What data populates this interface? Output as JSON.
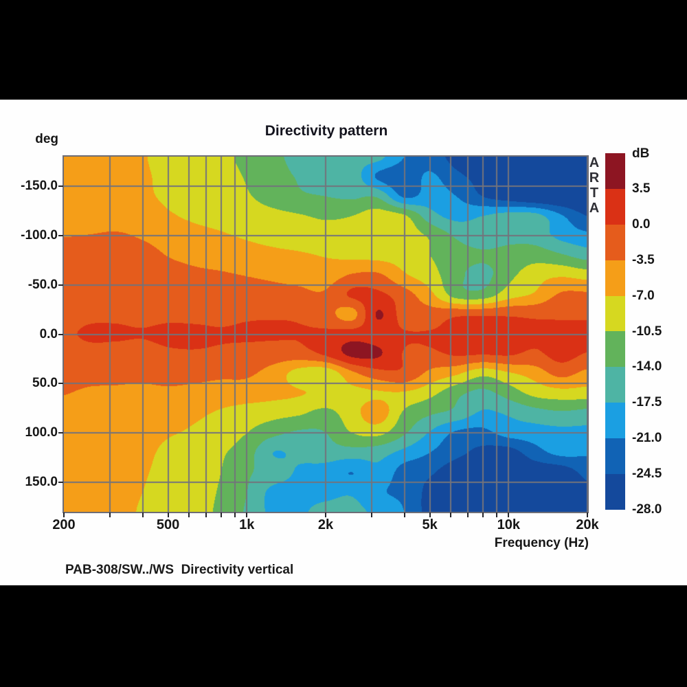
{
  "window": {
    "bar_color": "#000000",
    "content_color": "#fefefe"
  },
  "header": {
    "title": "Directivity pattern",
    "y_unit_label": "deg",
    "watermark": "ARTA"
  },
  "x_axis": {
    "label": "Frequency (Hz)",
    "tick_labels": [
      "200",
      "500",
      "1k",
      "2k",
      "5k",
      "10k",
      "20k"
    ],
    "tick_freqs": [
      200,
      500,
      1000,
      2000,
      5000,
      10000,
      20000
    ],
    "minor_tick_freqs": [
      200,
      300,
      400,
      500,
      600,
      700,
      800,
      900,
      1000,
      2000,
      3000,
      4000,
      5000,
      6000,
      7000,
      8000,
      9000,
      10000,
      20000
    ],
    "fmin": 200,
    "fmax": 20000,
    "scale": "log"
  },
  "y_axis": {
    "tick_labels": [
      "-150.0",
      "-100.0",
      "-50.0",
      "0.0",
      "50.0",
      "100.0",
      "150.0"
    ],
    "tick_angles": [
      -150,
      -100,
      -50,
      0,
      50,
      100,
      150
    ],
    "amin": -180,
    "amax": 180
  },
  "colorbar": {
    "unit": "dB",
    "boundary_labels": [
      "3.5",
      "0.0",
      "-3.5",
      "-7.0",
      "-10.5",
      "-14.0",
      "-17.5",
      "-21.0",
      "-24.5",
      "-28.0"
    ],
    "segment_colors": [
      "#8D1522",
      "#DA3115",
      "#E55C1C",
      "#F59E18",
      "#D6D820",
      "#62B35B",
      "#4EB4A4",
      "#1B9FE2",
      "#1163B5",
      "#14499C"
    ]
  },
  "footer": {
    "caption": "PAB-308/SW../WS  Directivity vertical"
  },
  "chart_data": {
    "type": "heatmap",
    "title": "Directivity pattern",
    "xlabel": "Frequency (Hz)",
    "ylabel": "deg",
    "value_unit": "dB",
    "x_scale": "log",
    "xlim": [
      200,
      20000
    ],
    "ylim": [
      -180,
      180
    ],
    "grid": true,
    "grid_color": "#73737b",
    "border_color": "#6d6d76",
    "legend_position": "right-colorbar",
    "levels_db": [
      3.5,
      0,
      -3.5,
      -7,
      -10.5,
      -14,
      -17.5,
      -21,
      -24.5
    ],
    "level_colors": [
      "#8D1522",
      "#DA3115",
      "#E55C1C",
      "#F59E18",
      "#D6D820",
      "#62B35B",
      "#4EB4A4",
      "#1B9FE2",
      "#1163B5",
      "#14499C"
    ],
    "colorbar_range_db": [
      3.5,
      -28.0
    ],
    "frequencies_hz": [
      200,
      250,
      315,
      400,
      500,
      630,
      800,
      1000,
      1250,
      1600,
      2000,
      2500,
      3150,
      4000,
      5000,
      6300,
      8000,
      10000,
      12500,
      16000,
      20000
    ],
    "angles_deg": [
      -180,
      -160,
      -140,
      -120,
      -100,
      -80,
      -60,
      -40,
      -20,
      0,
      20,
      40,
      60,
      80,
      100,
      120,
      140,
      160,
      180
    ],
    "values_db": [
      [
        -5.2,
        -5.4,
        -6.0,
        -6.8,
        -8.0,
        -8.6,
        -9.6,
        -11.5,
        -13.5,
        -14.5,
        -15.0,
        -16.0,
        -16.5,
        -21.0,
        -22.5,
        -26.0,
        -28.5,
        -29.0,
        -29.0,
        -29.0,
        -29.0
      ],
      [
        -5.2,
        -5.4,
        -6.0,
        -6.6,
        -7.8,
        -8.6,
        -9.4,
        -10.8,
        -13.0,
        -14.2,
        -14.8,
        -15.5,
        -21.5,
        -23.0,
        -20.5,
        -23.5,
        -26.0,
        -27.5,
        -28.5,
        -29.0,
        -29.0
      ],
      [
        -5.2,
        -5.3,
        -5.8,
        -6.4,
        -7.6,
        -8.4,
        -9.2,
        -10.2,
        -12.0,
        -13.5,
        -14.0,
        -14.5,
        -14.5,
        -21.5,
        -19.5,
        -21.0,
        -24.5,
        -26.5,
        -28.0,
        -28.5,
        -28.5
      ],
      [
        -5.3,
        -5.0,
        -4.8,
        -5.3,
        -6.6,
        -7.6,
        -8.2,
        -8.8,
        -9.5,
        -10.2,
        -11.0,
        -10.5,
        -8.8,
        -10.0,
        -16.0,
        -18.5,
        -17.5,
        -16.0,
        -16.2,
        -20.5,
        -24.5
      ],
      [
        -3.6,
        -3.4,
        -3.2,
        -3.8,
        -4.8,
        -5.8,
        -6.6,
        -7.4,
        -8.0,
        -8.4,
        -8.8,
        -8.8,
        -8.2,
        -8.8,
        -11.0,
        -14.5,
        -16.0,
        -15.0,
        -15.5,
        -18.5,
        -20.0
      ],
      [
        -2.6,
        -2.4,
        -2.4,
        -2.6,
        -3.6,
        -4.2,
        -4.8,
        -5.6,
        -6.2,
        -6.6,
        -7.2,
        -7.8,
        -8.0,
        -8.5,
        -10.5,
        -12.5,
        -13.5,
        -12.8,
        -12.0,
        -13.5,
        -15.5
      ],
      [
        -2.0,
        -1.8,
        -1.8,
        -2.0,
        -2.6,
        -3.0,
        -3.2,
        -3.6,
        -4.0,
        -4.4,
        -5.2,
        -3.2,
        -2.9,
        -6.5,
        -9.0,
        -13.0,
        -15.0,
        -11.5,
        -8.5,
        -7.5,
        -8.5
      ],
      [
        -1.6,
        -1.3,
        -1.4,
        -1.5,
        -1.8,
        -2.0,
        -2.2,
        -2.4,
        -2.6,
        -2.8,
        -3.0,
        0.5,
        0.8,
        -2.0,
        -6.0,
        -12.0,
        -12.5,
        -8.5,
        -6.5,
        -3.0,
        -2.8
      ],
      [
        -1.2,
        -0.6,
        -0.6,
        -1.0,
        -0.8,
        -1.0,
        -1.2,
        -0.6,
        -0.4,
        -0.6,
        -2.0,
        -4.8,
        3.8,
        -1.6,
        -1.8,
        -0.6,
        -0.5,
        -0.4,
        -0.6,
        -0.4,
        -0.5
      ],
      [
        -0.4,
        0.4,
        0.4,
        0.2,
        0.8,
        0.8,
        0.4,
        0.6,
        0.4,
        0.2,
        0.6,
        1.8,
        1.5,
        0.3,
        0.2,
        0.6,
        0.8,
        0.8,
        0.4,
        0.6,
        0.8
      ],
      [
        -1.4,
        -1.0,
        -1.2,
        -1.4,
        -0.6,
        -0.4,
        -0.8,
        -1.4,
        -1.6,
        -1.4,
        0.6,
        4.3,
        4.0,
        -0.2,
        -0.6,
        0.4,
        0.2,
        0.4,
        -0.6,
        1.2,
        -0.2
      ],
      [
        -2.2,
        -2.4,
        -2.6,
        -2.6,
        -2.2,
        -2.4,
        -2.8,
        -3.0,
        -5.0,
        -8.5,
        -9.5,
        -4.5,
        -1.4,
        -0.8,
        -4.5,
        -6.5,
        -9.5,
        -7.5,
        -5.5,
        -2.5,
        -4.5
      ],
      [
        -3.4,
        -4.0,
        -4.2,
        -4.4,
        -4.2,
        -4.6,
        -5.2,
        -5.4,
        -6.0,
        -6.8,
        -7.6,
        -8.0,
        -7.4,
        -7.5,
        -9.5,
        -13.0,
        -15.0,
        -12.5,
        -9.5,
        -8.5,
        -8.6
      ],
      [
        -4.4,
        -4.8,
        -6.2,
        -5.6,
        -5.8,
        -6.4,
        -7.4,
        -8.4,
        -9.2,
        -10.0,
        -11.5,
        -8.5,
        -5.0,
        -11.0,
        -13.5,
        -15.0,
        -18.0,
        -17.0,
        -15.5,
        -14.5,
        -15.2
      ],
      [
        -5.2,
        -5.6,
        -6.4,
        -6.4,
        -6.8,
        -7.4,
        -8.6,
        -10.5,
        -13.0,
        -14.5,
        -14.0,
        -10.5,
        -9.5,
        -13.5,
        -17.8,
        -21.5,
        -22.0,
        -19.5,
        -19.0,
        -18.5,
        -18.5
      ],
      [
        -5.4,
        -5.6,
        -6.2,
        -6.6,
        -7.4,
        -8.0,
        -10.0,
        -12.5,
        -17.5,
        -16.5,
        -15.5,
        -15.5,
        -16.0,
        -18.5,
        -21.0,
        -23.5,
        -25.5,
        -26.0,
        -22.5,
        -20.0,
        -20.5
      ],
      [
        -5.4,
        -5.6,
        -6.2,
        -6.8,
        -7.6,
        -8.2,
        -10.5,
        -13.5,
        -15.5,
        -18.0,
        -19.0,
        -21.0,
        -18.5,
        -22.5,
        -24.0,
        -26.5,
        -27.0,
        -27.5,
        -27.0,
        -26.5,
        -23.5
      ],
      [
        -5.4,
        -5.7,
        -6.3,
        -7.0,
        -7.8,
        -8.4,
        -11.0,
        -14.0,
        -18.5,
        -18.5,
        -18.5,
        -18.0,
        -20.5,
        -22.0,
        -25.5,
        -27.0,
        -28.0,
        -28.5,
        -28.0,
        -27.0,
        -25.5
      ],
      [
        -5.4,
        -5.7,
        -6.4,
        -7.2,
        -8.0,
        -8.6,
        -11.5,
        -14.5,
        -18.5,
        -18.0,
        -16.5,
        -16.5,
        -18.5,
        -21.0,
        -26.0,
        -27.5,
        -28.5,
        -29.0,
        -29.0,
        -28.0,
        -26.5
      ]
    ]
  }
}
